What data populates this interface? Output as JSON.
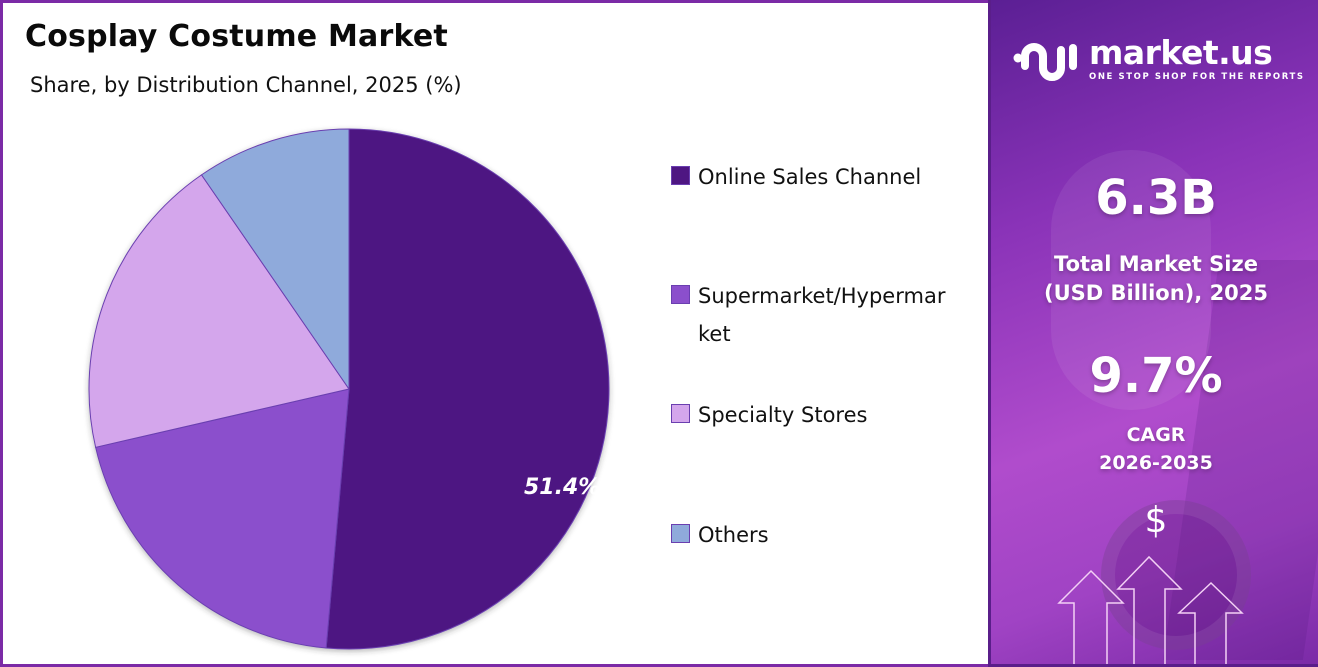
{
  "header": {
    "title": "Cosplay Costume Market",
    "subtitle": "Share, by Distribution Channel, 2025 (%)"
  },
  "pie": {
    "highlight_label": "51.4%"
  },
  "legend": {
    "items": [
      {
        "label": "Online Sales Channel",
        "color": "#4e1682"
      },
      {
        "label": "Supermarket/Hypermarket",
        "color": "#8b4fcc"
      },
      {
        "label": "Specialty Stores",
        "color": "#d4a6ec"
      },
      {
        "label": "Others",
        "color": "#8faadb"
      }
    ]
  },
  "sidebar": {
    "logo": {
      "name": "market.us",
      "tagline": "ONE STOP SHOP FOR THE REPORTS"
    },
    "market_size": {
      "value": "6.3B",
      "label_line1": "Total Market Size",
      "label_line2": "(USD Billion), 2025"
    },
    "cagr": {
      "value": "9.7%",
      "label_line1": "CAGR",
      "label_line2": "2026-2035"
    },
    "icon": "dollar-icon"
  },
  "chart_data": {
    "type": "pie",
    "title": "Cosplay Costume Market",
    "subtitle": "Share, by Distribution Channel, 2025 (%)",
    "categories": [
      "Online Sales Channel",
      "Supermarket/Hypermarket",
      "Specialty Stores",
      "Others"
    ],
    "values": [
      51.4,
      20.0,
      19.0,
      9.6
    ],
    "colors": [
      "#4e1682",
      "#8b4fcc",
      "#d4a6ec",
      "#8faadb"
    ],
    "data_labels": [
      "51.4%",
      "",
      "",
      ""
    ],
    "legend_position": "right",
    "start_angle": "12 o'clock, clockwise"
  }
}
